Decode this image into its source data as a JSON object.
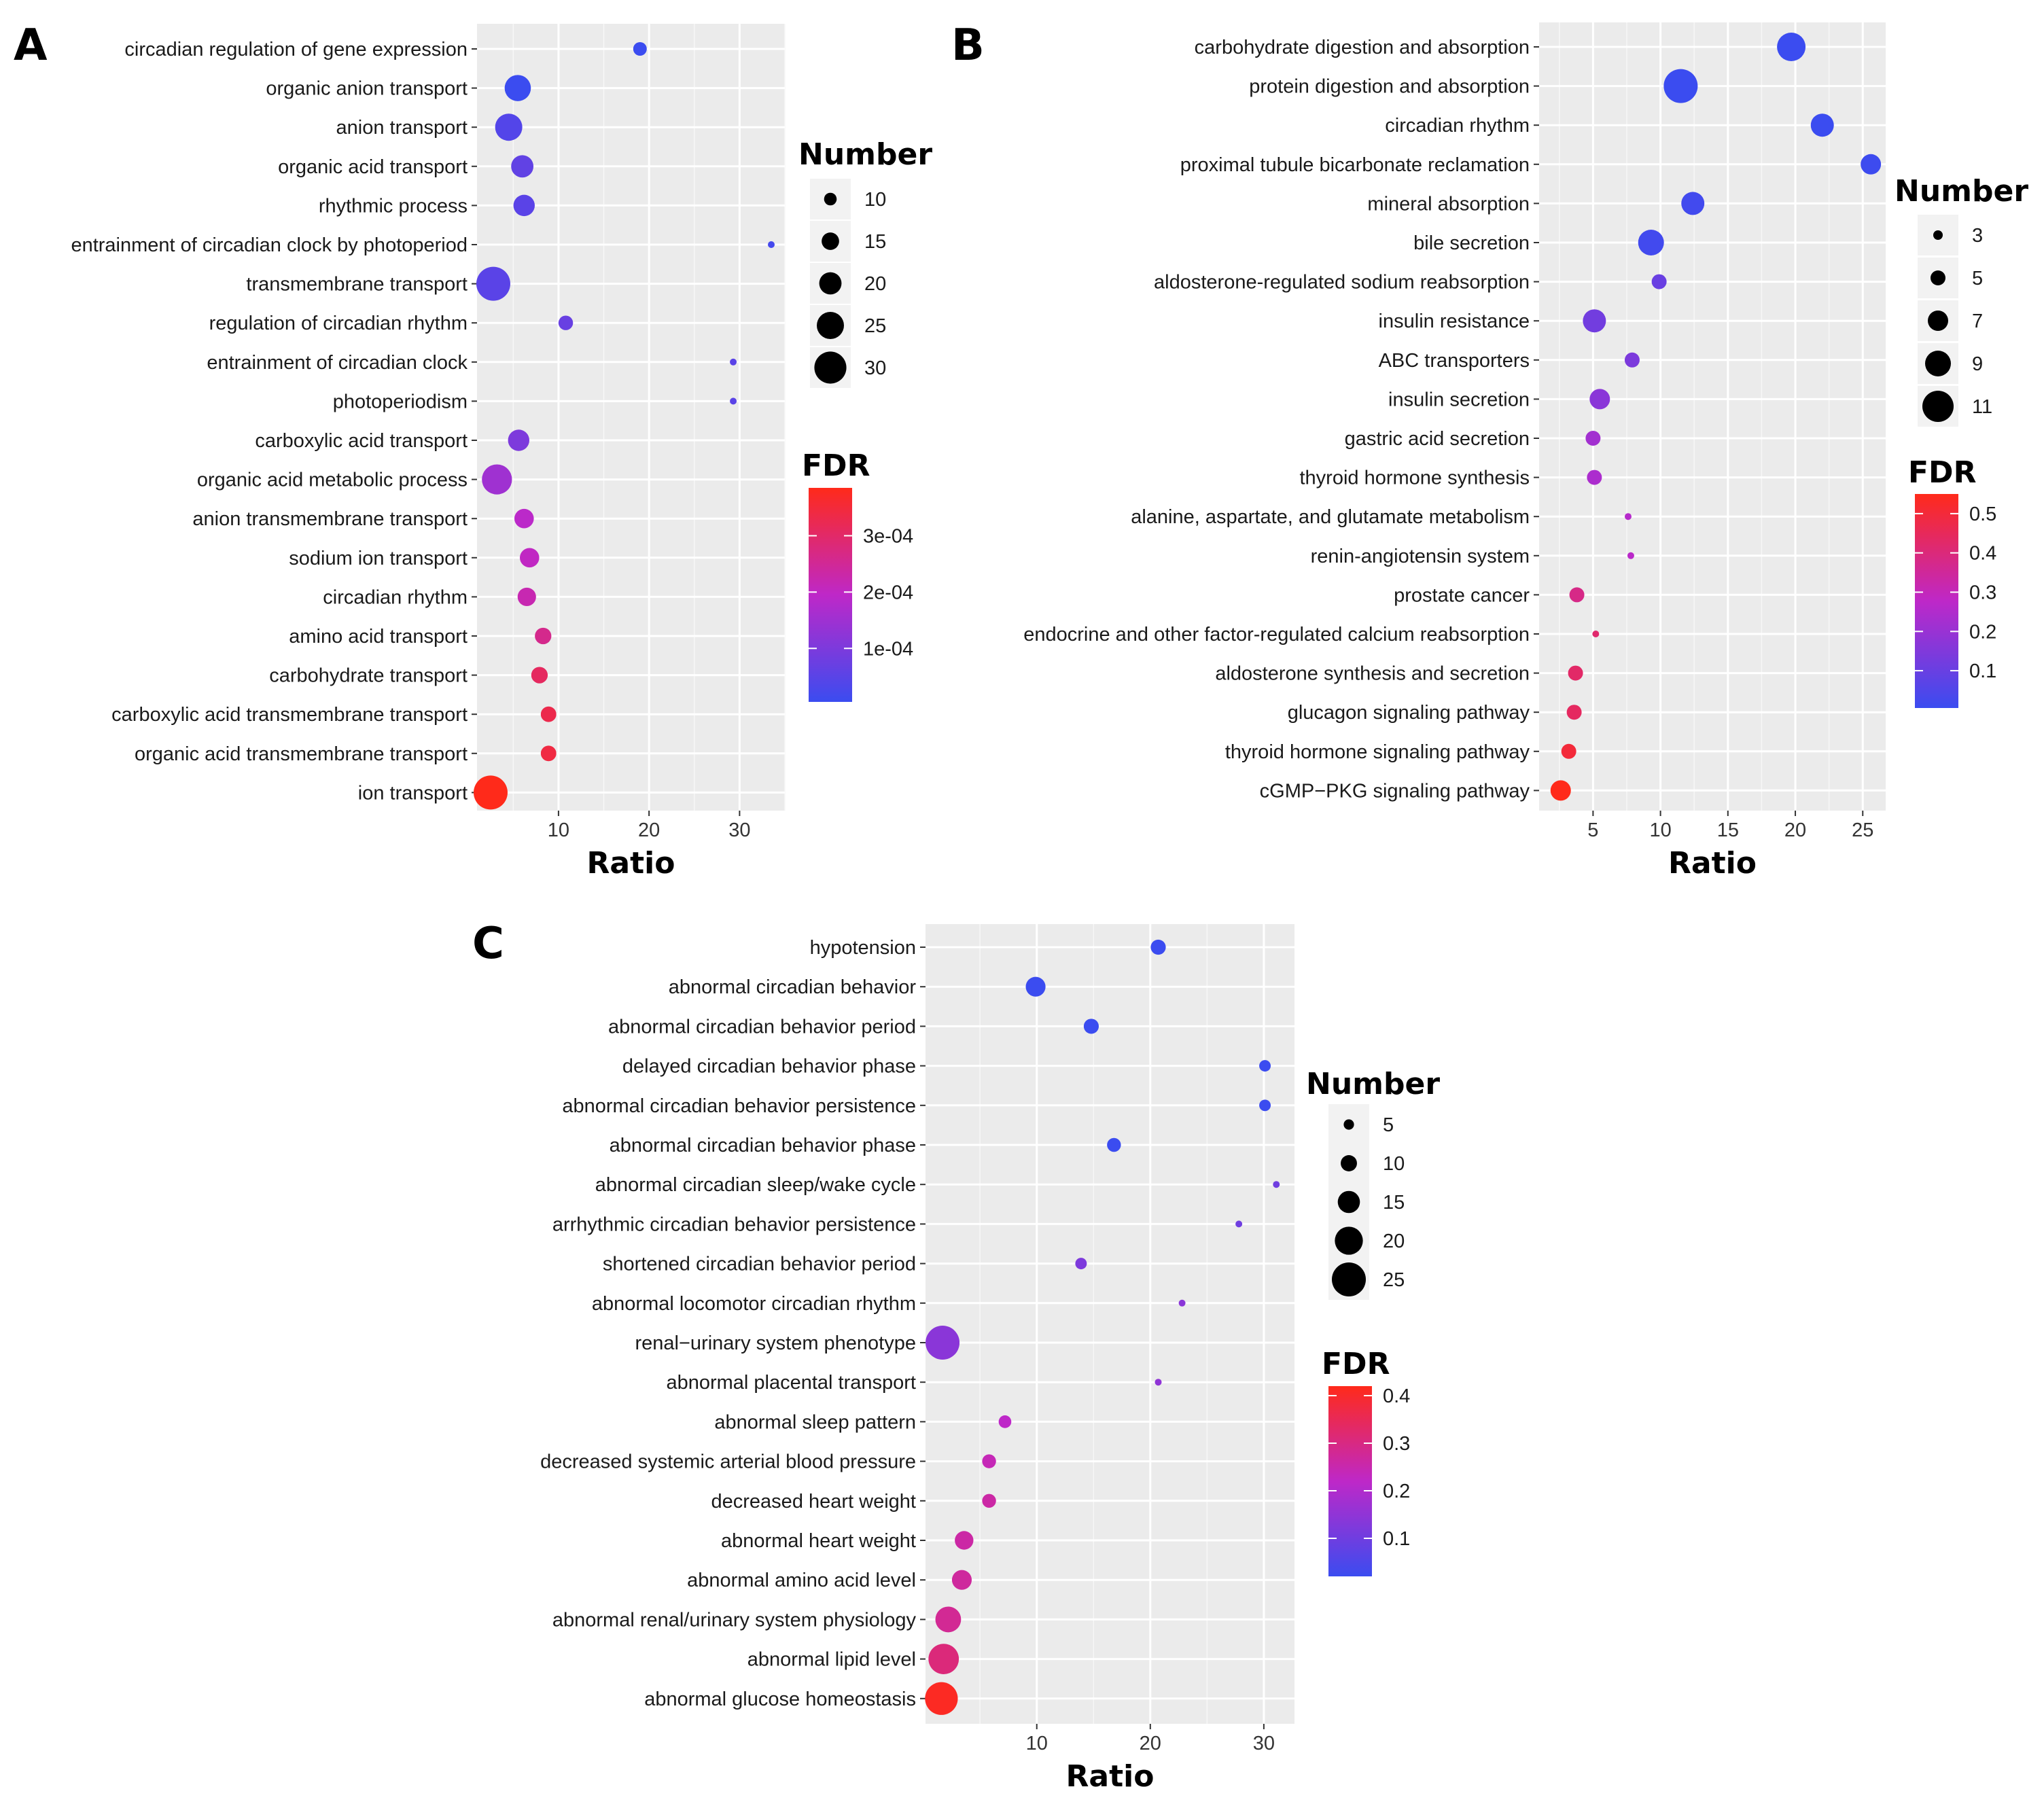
{
  "chart_data": [
    {
      "type": "scatter",
      "panel": "A",
      "xlabel": "Ratio",
      "xlim": [
        1,
        35
      ],
      "xticks": [
        10,
        20,
        30
      ],
      "size_legend": {
        "title": "Number",
        "values": [
          10,
          15,
          20,
          25,
          30
        ]
      },
      "color_legend": {
        "title": "FDR",
        "ticks": [
          0.0001,
          0.0002,
          0.0003
        ],
        "tick_labels": [
          "1e-04",
          "2e-04",
          "3e-04"
        ],
        "low_color": "#3b4cf0",
        "high_color": "#ff2a1a"
      },
      "points": [
        {
          "term": "circadian regulation of gene expression",
          "ratio": 19.0,
          "number": 11,
          "fdr": 0.0
        },
        {
          "term": "organic anion transport",
          "ratio": 5.5,
          "number": 24,
          "fdr": 5e-06
        },
        {
          "term": "anion transport",
          "ratio": 4.5,
          "number": 25,
          "fdr": 4e-05
        },
        {
          "term": "organic acid transport",
          "ratio": 6.0,
          "number": 20,
          "fdr": 6e-05
        },
        {
          "term": "rhythmic process",
          "ratio": 6.2,
          "number": 19,
          "fdr": 5e-05
        },
        {
          "term": "entrainment of circadian clock by photoperiod",
          "ratio": 33.5,
          "number": 4,
          "fdr": 2e-05
        },
        {
          "term": "transmembrane transport",
          "ratio": 2.8,
          "number": 32,
          "fdr": 5e-05
        },
        {
          "term": "regulation of circadian rhythm",
          "ratio": 10.8,
          "number": 12,
          "fdr": 7e-05
        },
        {
          "term": "entrainment of circadian clock",
          "ratio": 29.3,
          "number": 4,
          "fdr": 5e-05
        },
        {
          "term": "photoperiodism",
          "ratio": 29.3,
          "number": 4,
          "fdr": 5e-05
        },
        {
          "term": "carboxylic acid transport",
          "ratio": 5.6,
          "number": 19,
          "fdr": 0.0001
        },
        {
          "term": "organic acid metabolic process",
          "ratio": 3.2,
          "number": 28,
          "fdr": 0.00015
        },
        {
          "term": "anion transmembrane transport",
          "ratio": 6.2,
          "number": 17,
          "fdr": 0.00019
        },
        {
          "term": "sodium ion transport",
          "ratio": 6.8,
          "number": 17,
          "fdr": 0.0002
        },
        {
          "term": "circadian rhythm",
          "ratio": 6.5,
          "number": 16,
          "fdr": 0.00022
        },
        {
          "term": "amino acid transport",
          "ratio": 8.3,
          "number": 14,
          "fdr": 0.00026
        },
        {
          "term": "carbohydrate transport",
          "ratio": 7.9,
          "number": 14,
          "fdr": 0.00031
        },
        {
          "term": "carboxylic acid transmembrane transport",
          "ratio": 8.9,
          "number": 13,
          "fdr": 0.00033
        },
        {
          "term": "organic acid transmembrane transport",
          "ratio": 8.9,
          "number": 13,
          "fdr": 0.00034
        },
        {
          "term": "ion transport",
          "ratio": 2.5,
          "number": 32,
          "fdr": 0.000385
        }
      ]
    },
    {
      "type": "scatter",
      "panel": "B",
      "xlabel": "Ratio",
      "xlim": [
        1,
        26.7
      ],
      "xticks": [
        5,
        10,
        15,
        20,
        25
      ],
      "size_legend": {
        "title": "Number",
        "values": [
          3,
          5,
          7,
          9,
          11
        ]
      },
      "color_legend": {
        "title": "FDR",
        "ticks": [
          0.1,
          0.2,
          0.3,
          0.4,
          0.5
        ],
        "tick_labels": [
          "0.1",
          "0.2",
          "0.3",
          "0.4",
          "0.5"
        ],
        "low_color": "#3b4cf0",
        "high_color": "#ff2a1a"
      },
      "points": [
        {
          "term": "carbohydrate digestion and absorption",
          "ratio": 19.7,
          "number": 10,
          "fdr": 0.0
        },
        {
          "term": "protein digestion and absorption",
          "ratio": 11.5,
          "number": 12,
          "fdr": 0.0
        },
        {
          "term": "circadian rhythm",
          "ratio": 22.0,
          "number": 8,
          "fdr": 0.005
        },
        {
          "term": "proximal tubule bicarbonate reclamation",
          "ratio": 25.6,
          "number": 7,
          "fdr": 0.01
        },
        {
          "term": "mineral absorption",
          "ratio": 12.4,
          "number": 8,
          "fdr": 0.02
        },
        {
          "term": "bile secretion",
          "ratio": 9.3,
          "number": 9,
          "fdr": 0.02
        },
        {
          "term": "aldosterone-regulated sodium reabsorption",
          "ratio": 9.9,
          "number": 5,
          "fdr": 0.1
        },
        {
          "term": "insulin resistance",
          "ratio": 5.1,
          "number": 8,
          "fdr": 0.12
        },
        {
          "term": "ABC transporters",
          "ratio": 7.9,
          "number": 5,
          "fdr": 0.14
        },
        {
          "term": "insulin secretion",
          "ratio": 5.5,
          "number": 7,
          "fdr": 0.17
        },
        {
          "term": "gastric acid secretion",
          "ratio": 5.0,
          "number": 5,
          "fdr": 0.22
        },
        {
          "term": "thyroid hormone synthesis",
          "ratio": 5.1,
          "number": 5,
          "fdr": 0.24
        },
        {
          "term": "alanine, aspartate, and glutamate metabolism",
          "ratio": 7.6,
          "number": 2,
          "fdr": 0.26
        },
        {
          "term": "renin-angiotensin system",
          "ratio": 7.8,
          "number": 2,
          "fdr": 0.27
        },
        {
          "term": "prostate cancer",
          "ratio": 3.8,
          "number": 5,
          "fdr": 0.38
        },
        {
          "term": "endocrine and other factor-regulated calcium reabsorption",
          "ratio": 5.2,
          "number": 2,
          "fdr": 0.42
        },
        {
          "term": "aldosterone synthesis and secretion",
          "ratio": 3.7,
          "number": 5,
          "fdr": 0.43
        },
        {
          "term": "glucagon signaling pathway",
          "ratio": 3.6,
          "number": 5,
          "fdr": 0.44
        },
        {
          "term": "thyroid hormone signaling pathway",
          "ratio": 3.2,
          "number": 5,
          "fdr": 0.5
        },
        {
          "term": "cGMP−PKG signaling pathway",
          "ratio": 2.6,
          "number": 7,
          "fdr": 0.55
        }
      ]
    },
    {
      "type": "scatter",
      "panel": "C",
      "xlabel": "Ratio",
      "xlim": [
        0.2,
        32.7
      ],
      "xticks": [
        10,
        20,
        30
      ],
      "size_legend": {
        "title": "Number",
        "values": [
          5,
          10,
          15,
          20,
          25
        ]
      },
      "color_legend": {
        "title": "FDR",
        "ticks": [
          0.1,
          0.2,
          0.3,
          0.4
        ],
        "tick_labels": [
          "0.1",
          "0.2",
          "0.3",
          "0.4"
        ],
        "low_color": "#3b4cf0",
        "high_color": "#ff2a1a"
      },
      "points": [
        {
          "term": "hypotension",
          "ratio": 20.7,
          "number": 9,
          "fdr": 0.0
        },
        {
          "term": "abnormal circadian behavior",
          "ratio": 9.9,
          "number": 13,
          "fdr": 0.0
        },
        {
          "term": "abnormal circadian behavior period",
          "ratio": 14.8,
          "number": 9,
          "fdr": 0.01
        },
        {
          "term": "delayed circadian behavior phase",
          "ratio": 30.1,
          "number": 6,
          "fdr": 0.01
        },
        {
          "term": "abnormal circadian behavior persistence",
          "ratio": 30.1,
          "number": 6,
          "fdr": 0.01
        },
        {
          "term": "abnormal circadian behavior phase",
          "ratio": 16.8,
          "number": 8,
          "fdr": 0.02
        },
        {
          "term": "abnormal circadian sleep/wake cycle",
          "ratio": 31.1,
          "number": 2,
          "fdr": 0.1
        },
        {
          "term": "arrhythmic circadian behavior persistence",
          "ratio": 27.8,
          "number": 2,
          "fdr": 0.1
        },
        {
          "term": "shortened circadian behavior period",
          "ratio": 13.9,
          "number": 6,
          "fdr": 0.12
        },
        {
          "term": "abnormal locomotor circadian rhythm",
          "ratio": 22.8,
          "number": 2,
          "fdr": 0.14
        },
        {
          "term": "renal−urinary system phenotype",
          "ratio": 1.7,
          "number": 25,
          "fdr": 0.14
        },
        {
          "term": "abnormal placental transport",
          "ratio": 20.7,
          "number": 2,
          "fdr": 0.15
        },
        {
          "term": "abnormal sleep pattern",
          "ratio": 7.2,
          "number": 7,
          "fdr": 0.22
        },
        {
          "term": "decreased systemic arterial blood pressure",
          "ratio": 5.8,
          "number": 8,
          "fdr": 0.24
        },
        {
          "term": "decreased heart weight",
          "ratio": 5.8,
          "number": 8,
          "fdr": 0.26
        },
        {
          "term": "abnormal heart weight",
          "ratio": 3.6,
          "number": 12,
          "fdr": 0.26
        },
        {
          "term": "abnormal amino acid level",
          "ratio": 3.4,
          "number": 13,
          "fdr": 0.27
        },
        {
          "term": "abnormal renal/urinary system physiology",
          "ratio": 2.2,
          "number": 18,
          "fdr": 0.28
        },
        {
          "term": "abnormal lipid level",
          "ratio": 1.8,
          "number": 22,
          "fdr": 0.31
        },
        {
          "term": "abnormal glucose homeostasis",
          "ratio": 1.6,
          "number": 24,
          "fdr": 0.41
        }
      ]
    }
  ]
}
